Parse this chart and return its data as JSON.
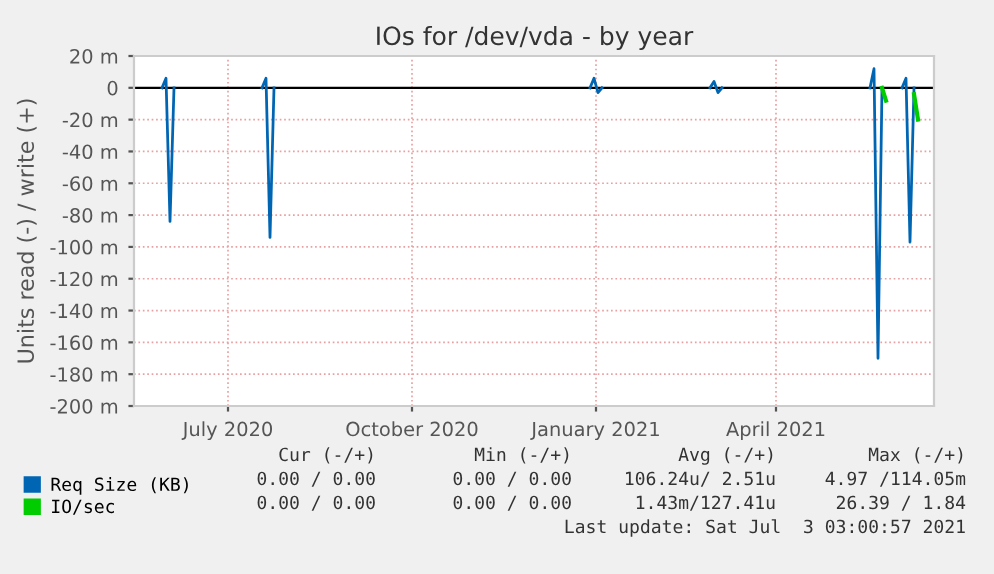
{
  "chart_data": {
    "type": "line",
    "title": "IOs for /dev/vda - by year",
    "ylabel": "Units read (-) / write (+)",
    "xlim": [
      "2020-05-15",
      "2021-06-19"
    ],
    "xticks": [
      {
        "value": "2020-07-01",
        "label": "July 2020"
      },
      {
        "value": "2020-10-01",
        "label": "October 2020"
      },
      {
        "value": "2021-01-01",
        "label": "January 2021"
      },
      {
        "value": "2021-04-01",
        "label": "April 2021"
      }
    ],
    "ylim": [
      -200,
      20
    ],
    "yticks": [
      {
        "value": -200,
        "label": "-200 m"
      },
      {
        "value": -180,
        "label": "-180 m"
      },
      {
        "value": -160,
        "label": "-160 m"
      },
      {
        "value": -140,
        "label": "-140 m"
      },
      {
        "value": -120,
        "label": "-120 m"
      },
      {
        "value": -100,
        "label": "-100 m"
      },
      {
        "value": -80,
        "label": "-80 m"
      },
      {
        "value": -60,
        "label": "-60 m"
      },
      {
        "value": -40,
        "label": "-40 m"
      },
      {
        "value": -20,
        "label": "-20 m"
      },
      0,
      {
        "value": 20,
        "label": "20 m"
      }
    ],
    "grid": true,
    "legend": "bottom",
    "ref_lines": [
      {
        "axis": "y",
        "value": 0,
        "color": "#000000"
      }
    ],
    "series": [
      {
        "name": "Req Size (KB)",
        "color": "#0066b3",
        "x": [
          "2020-05-29",
          "2020-05-31",
          "2020-06-02",
          "2020-06-04",
          "2020-06-10",
          "2020-07-18",
          "2020-07-20",
          "2020-07-22",
          "2020-07-24",
          "2020-08-01",
          "2020-12-29",
          "2020-12-31",
          "2021-01-02",
          "2021-01-04",
          "2021-02-01",
          "2021-02-27",
          "2021-03-01",
          "2021-03-03",
          "2021-03-05",
          "2021-04-01",
          "2021-05-18",
          "2021-05-20",
          "2021-05-22",
          "2021-05-24",
          "2021-06-01",
          "2021-06-03",
          "2021-06-05",
          "2021-06-07",
          "2021-06-09"
        ],
        "values": [
          0,
          6,
          -84,
          0,
          null,
          0,
          6,
          -94,
          0,
          null,
          0,
          6,
          -3,
          0,
          null,
          0,
          4,
          -3,
          0,
          null,
          0,
          12,
          -170,
          0,
          null,
          0,
          6,
          -97,
          0
        ]
      },
      {
        "name": "IO/sec",
        "color": "#00cc00",
        "x": [
          "2021-05-24",
          "2021-05-26",
          "2021-06-01",
          "2021-06-09",
          "2021-06-11"
        ],
        "values": [
          0,
          -8,
          null,
          -4,
          -20
        ]
      }
    ],
    "annotations": [
      "Cur (-/+)",
      "Min (-/+)",
      "Avg (-/+)",
      "Max (-/+)",
      "0.00 / 0.00",
      "0.00 / 0.00",
      "106.24u/ 2.51u",
      "4.97 /114.05m",
      "0.00 / 0.00",
      "0.00 / 0.00",
      "1.43m/127.41u",
      "26.39 / 1.84",
      "Last update: Sat Jul  3 03:00:57 2021"
    ]
  }
}
